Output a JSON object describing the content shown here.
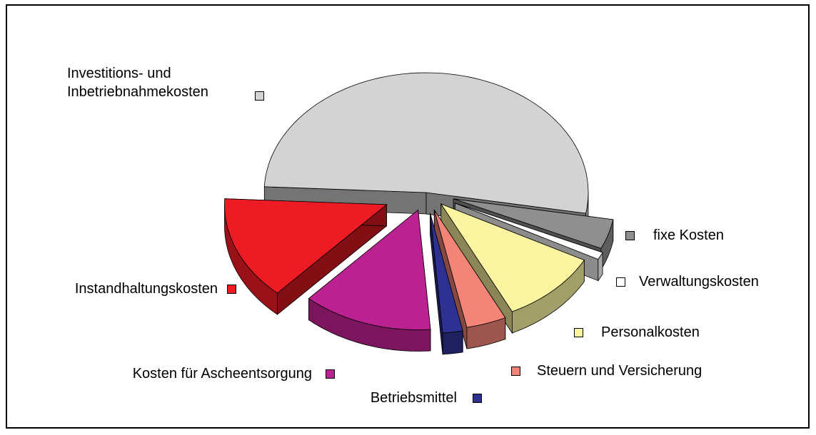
{
  "chart_data": {
    "type": "pie3d",
    "categories": [
      "fixe Kosten",
      "Verwaltungskosten",
      "Personalkosten",
      "Steuern und Versicherung",
      "Betriebsmittel",
      "Kosten für Ascheentsorgung",
      "Instandhaltungskosten",
      "Investitions- und Inbetriebnahmekosten"
    ],
    "values": [
      4,
      1,
      10,
      4,
      2,
      13,
      14,
      52
    ],
    "colors": [
      "#8f8f8f",
      "#ffffff",
      "#fbf4a0",
      "#f28478",
      "#2e3192",
      "#bb2190",
      "#ed1c24",
      "#d3d3d3"
    ]
  }
}
